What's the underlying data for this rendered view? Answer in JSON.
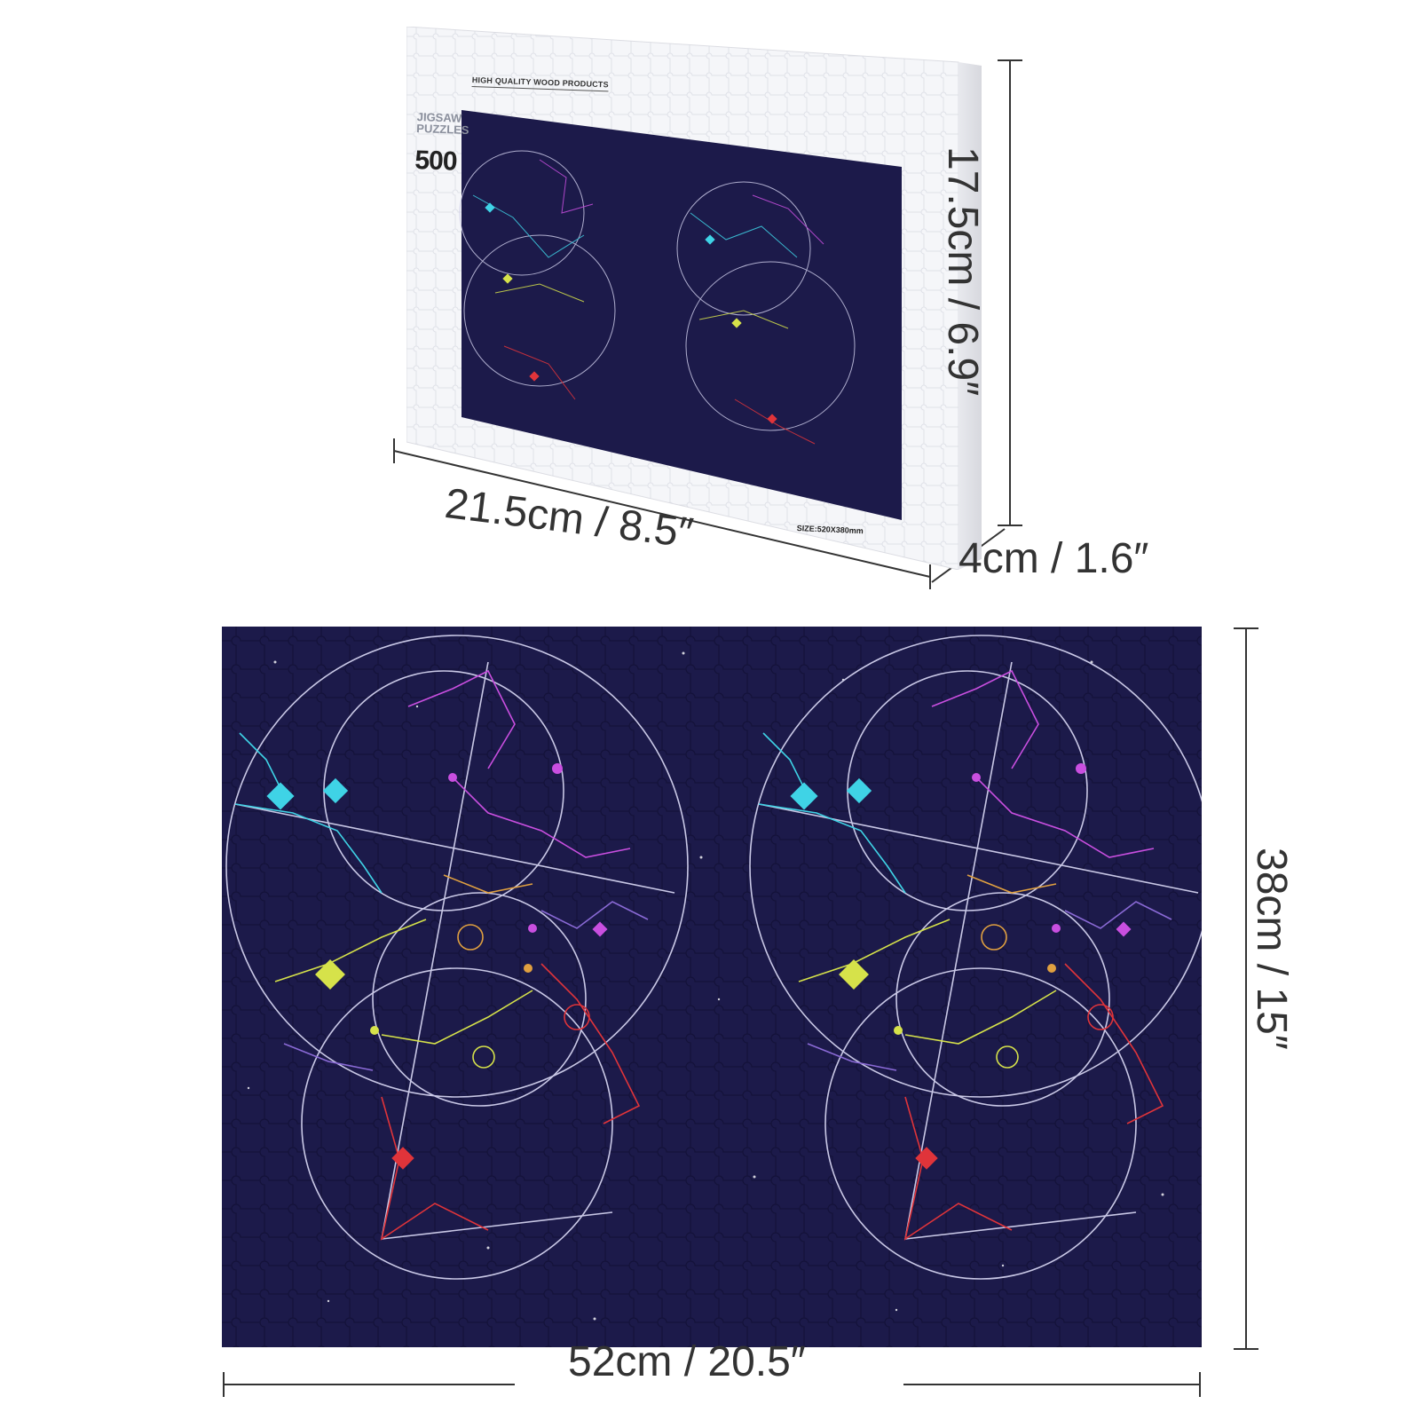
{
  "box": {
    "brand_line": "HIGH QUALITY WOOD PRODUCTS",
    "type_line_1": "JIGSAW",
    "type_line_2": "PUZZLES",
    "piece_count": "500",
    "size_line": "SIZE:520X380mm"
  },
  "dimensions": {
    "box_width": "21.5cm / 8.5″",
    "box_height": "17.5cm / 6.9″",
    "box_depth": "4cm / 1.6″",
    "puzzle_height": "38cm / 15″",
    "puzzle_width": "52cm / 20.5″"
  },
  "colors": {
    "puzzle_background": "#1c1a4a",
    "box_background": "#f3f4f8",
    "line_white": "#c9c8e6",
    "cyan": "#3fd3e6",
    "magenta": "#c94fe0",
    "yellow": "#d6e24a",
    "red": "#e0343a",
    "orange": "#e0a040",
    "violet": "#8a6ad6"
  }
}
